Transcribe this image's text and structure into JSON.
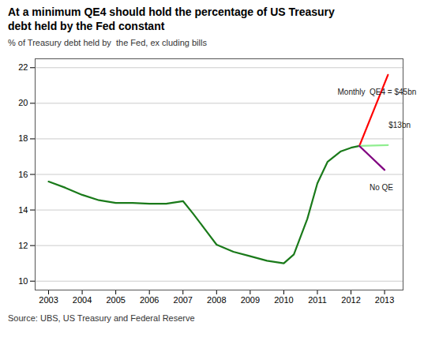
{
  "chart_data": {
    "type": "line",
    "title": "At a minimum QE4 should hold the percentage of US Treasury\ndebt held by the Fed constant",
    "subtitle": "% of Treasury debt held by  the Fed, ex cluding bills",
    "source": "Source: UBS, US Treasury and Federal Reserve",
    "xlim": [
      2002.6,
      2013.55
    ],
    "xticks": [
      2003,
      2004,
      2005,
      2006,
      2007,
      2008,
      2009,
      2010,
      2011,
      2012,
      2013
    ],
    "ylim": [
      9.5,
      22.5
    ],
    "yticks": [
      10,
      12,
      14,
      16,
      18,
      20,
      22
    ],
    "grid": "y",
    "series": [
      {
        "color": "#1a7a1a",
        "x": [
          2003,
          2003.5,
          2004,
          2004.5,
          2005,
          2005.5,
          2006,
          2006.5,
          2007,
          2007.3,
          2007.7,
          2008,
          2008.5,
          2009,
          2009.5,
          2010,
          2010.3,
          2010.7,
          2011,
          2011.3,
          2011.7,
          2012,
          2012.25
        ],
        "values": [
          15.6,
          15.25,
          14.85,
          14.55,
          14.4,
          14.4,
          14.35,
          14.35,
          14.5,
          13.8,
          12.8,
          12.05,
          11.65,
          11.4,
          11.15,
          11.0,
          11.5,
          13.5,
          15.5,
          16.7,
          17.3,
          17.5,
          17.6
        ]
      },
      {
        "color": "#ff0000",
        "x": [
          2012.25,
          2013.1
        ],
        "values": [
          17.6,
          21.6
        ]
      },
      {
        "color": "#90ee90",
        "x": [
          2012.25,
          2013.1
        ],
        "values": [
          17.6,
          17.65
        ]
      },
      {
        "color": "#800080",
        "x": [
          2012.25,
          2013.0
        ],
        "values": [
          17.6,
          16.25
        ]
      }
    ],
    "annotations": [
      {
        "text": "Monthly  QE4 = $45bn",
        "x": 2011.6,
        "y": 20.5
      },
      {
        "text": "$13bn",
        "x": 2013.12,
        "y": 18.6
      },
      {
        "text": "No QE",
        "x": 2012.55,
        "y": 15.1
      }
    ]
  }
}
